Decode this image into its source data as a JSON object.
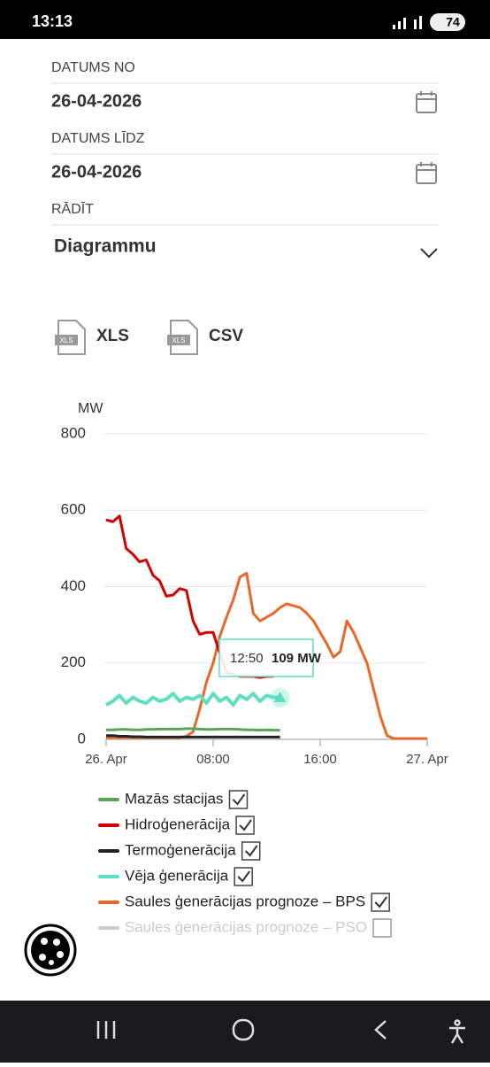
{
  "status_bar": {
    "time": "13:13",
    "battery": "74"
  },
  "form": {
    "date_from_label": "DATUMS NO",
    "date_from": "26-04-2026",
    "date_to_label": "DATUMS LĪDZ",
    "date_to": "26-04-2026",
    "show_label": "RĀDĪT",
    "show_value": "Diagrammu"
  },
  "downloads": [
    {
      "icon": "XLS",
      "label": "XLS"
    },
    {
      "icon": "XLS",
      "label": "CSV"
    }
  ],
  "chart_data": {
    "type": "line",
    "y_label": "MW",
    "x": [
      0,
      0.5,
      1,
      1.5,
      2,
      2.5,
      3,
      3.5,
      4,
      4.5,
      5,
      5.5,
      6,
      6.5,
      7,
      7.5,
      8,
      8.5,
      9,
      9.5,
      10,
      10.5,
      11,
      11.5,
      12,
      12.5,
      13,
      13.5,
      14,
      14.5,
      15,
      15.5,
      16,
      16.5,
      17,
      17.5,
      18,
      18.5,
      19,
      19.5,
      20,
      20.5,
      21,
      21.5,
      22,
      22.5,
      23,
      23.5,
      24
    ],
    "xlim": [
      0,
      24
    ],
    "xticks": [
      {
        "value": 0,
        "label": "26. Apr"
      },
      {
        "value": 8,
        "label": "08:00"
      },
      {
        "value": 16,
        "label": "16:00"
      },
      {
        "value": 24,
        "label": "27. Apr"
      }
    ],
    "ylim": [
      0,
      800
    ],
    "yticks": [
      0,
      200,
      400,
      600,
      800
    ],
    "grid": true,
    "series": [
      {
        "name": "Mazās stacijas",
        "color": "#5aa55a",
        "checked": true,
        "values": [
          25,
          25,
          26,
          26,
          25,
          25,
          26,
          26,
          27,
          27,
          27,
          27,
          28,
          28,
          27,
          26,
          26,
          27,
          27,
          27,
          26,
          25,
          25,
          24,
          25,
          24,
          24,
          null,
          null,
          null,
          null,
          null,
          null,
          null,
          null,
          null,
          null,
          null,
          null,
          null,
          null,
          null,
          null,
          null,
          null,
          null,
          null,
          null,
          null
        ]
      },
      {
        "name": "Hidroģenerācija",
        "color": "#d40000",
        "checked": true,
        "values": [
          575,
          570,
          585,
          500,
          485,
          465,
          470,
          430,
          415,
          375,
          378,
          395,
          390,
          310,
          275,
          280,
          280,
          225,
          175,
          170,
          165,
          165,
          165,
          162,
          165,
          165,
          null,
          null,
          null,
          null,
          null,
          null,
          null,
          null,
          null,
          null,
          null,
          null,
          null,
          null,
          null,
          null,
          null,
          null,
          null,
          null,
          null,
          null,
          null
        ]
      },
      {
        "name": "Termoģenerācija",
        "color": "#222222",
        "checked": true,
        "values": [
          10,
          10,
          8,
          8,
          7,
          7,
          6,
          6,
          6,
          6,
          6,
          6,
          6,
          6,
          6,
          6,
          6,
          6,
          6,
          6,
          6,
          6,
          6,
          6,
          6,
          6,
          6,
          null,
          null,
          null,
          null,
          null,
          null,
          null,
          null,
          null,
          null,
          null,
          null,
          null,
          null,
          null,
          null,
          null,
          null,
          null,
          null,
          null,
          null
        ]
      },
      {
        "name": "Vēja ģenerācija",
        "color": "#5ee0c0",
        "checked": true,
        "values": [
          90,
          100,
          115,
          95,
          110,
          100,
          95,
          110,
          100,
          105,
          120,
          100,
          110,
          105,
          115,
          95,
          120,
          100,
          110,
          90,
          115,
          105,
          120,
          100,
          115,
          110,
          109,
          null,
          null,
          null,
          null,
          null,
          null,
          null,
          null,
          null,
          null,
          null,
          null,
          null,
          null,
          null,
          null,
          null,
          null,
          null,
          null,
          null,
          null
        ]
      },
      {
        "name": "Saules ģenerācijas prognoze – BPS",
        "color": "#e8682a",
        "checked": true,
        "values": [
          5,
          5,
          5,
          5,
          5,
          5,
          5,
          5,
          5,
          5,
          5,
          5,
          8,
          20,
          80,
          150,
          200,
          270,
          320,
          365,
          425,
          435,
          330,
          310,
          320,
          330,
          345,
          355,
          350,
          345,
          330,
          310,
          280,
          250,
          215,
          230,
          310,
          280,
          240,
          200,
          130,
          60,
          10,
          2,
          2,
          2,
          2,
          2,
          2
        ]
      },
      {
        "name": "Saules ģenerācijas prognoze – PSO",
        "color": "#cccccc",
        "checked": false,
        "values": [
          null,
          null,
          null,
          null,
          null,
          null,
          null,
          null,
          null,
          null,
          null,
          null,
          null,
          null,
          null,
          null,
          null,
          null,
          null,
          null,
          null,
          null,
          null,
          null,
          null,
          null,
          null,
          null,
          null,
          null,
          null,
          null,
          null,
          null,
          null,
          null,
          null,
          null,
          null,
          null,
          null,
          null,
          null,
          null,
          null,
          null,
          null,
          null,
          null
        ]
      }
    ],
    "tooltip": {
      "time": "12:50",
      "value": "109 MW"
    }
  }
}
